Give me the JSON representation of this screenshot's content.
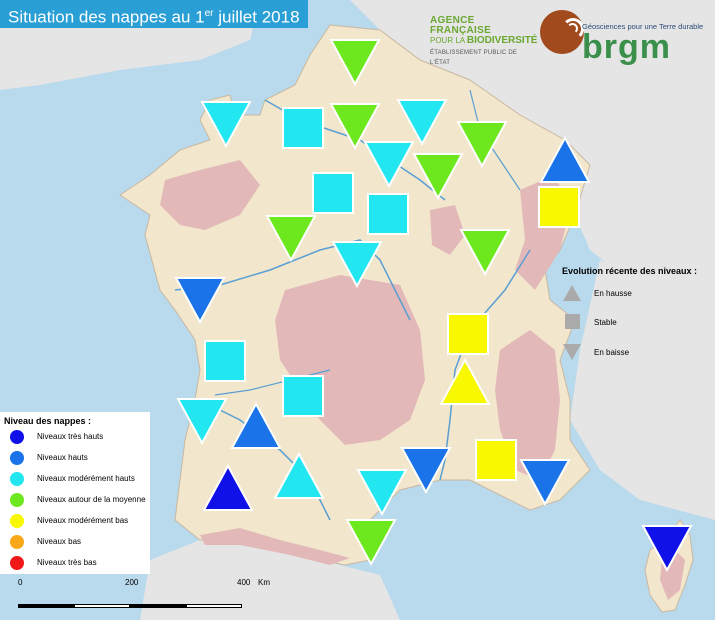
{
  "title": {
    "prefix": "Situation des nappes au 1",
    "sup": "er",
    "suffix": " juillet 2018"
  },
  "logos": {
    "afb_line1": "AGENCE FRANÇAISE",
    "afb_line2a": "POUR LA ",
    "afb_line2b": "BIODIVERSITÉ",
    "afb_line3": "ÉTABLISSEMENT PUBLIC DE L'ÉTAT",
    "brgm_tagline": "Géosciences pour une Terre durable",
    "brgm_name": "brgm"
  },
  "colors": {
    "tres_hauts": "#1010e8",
    "hauts": "#1a73e8",
    "moderement_hauts": "#22e6f0",
    "moyenne": "#6ee81e",
    "moderement_bas": "#f8f800",
    "bas": "#f8a818",
    "tres_bas": "#f01818",
    "sea": "#b9d9ec",
    "land": "#f2e7cc",
    "relief": "#e3b8b8",
    "neighbors": "#e5e5e5"
  },
  "legend_levels": {
    "title": "Niveau des nappes :",
    "items": [
      {
        "label": "Niveaux très hauts",
        "color": "#1010e8"
      },
      {
        "label": "Niveaux hauts",
        "color": "#1a73e8"
      },
      {
        "label": "Niveaux modérément hauts",
        "color": "#22e6f0"
      },
      {
        "label": "Niveaux autour de la moyenne",
        "color": "#6ee81e"
      },
      {
        "label": "Niveaux modérément bas",
        "color": "#f8f800"
      },
      {
        "label": "Niveaux bas",
        "color": "#f8a818"
      },
      {
        "label": "Niveaux très bas",
        "color": "#f01818"
      }
    ]
  },
  "legend_evolution": {
    "title": "Evolution récente des niveaux :",
    "items": [
      {
        "label": "En hausse",
        "shape": "triangle-up"
      },
      {
        "label": "Stable",
        "shape": "square"
      },
      {
        "label": "En baisse",
        "shape": "triangle-down"
      }
    ]
  },
  "scale": {
    "t0": "0",
    "t1": "200",
    "t2": "400",
    "unit": "Km"
  }
}
